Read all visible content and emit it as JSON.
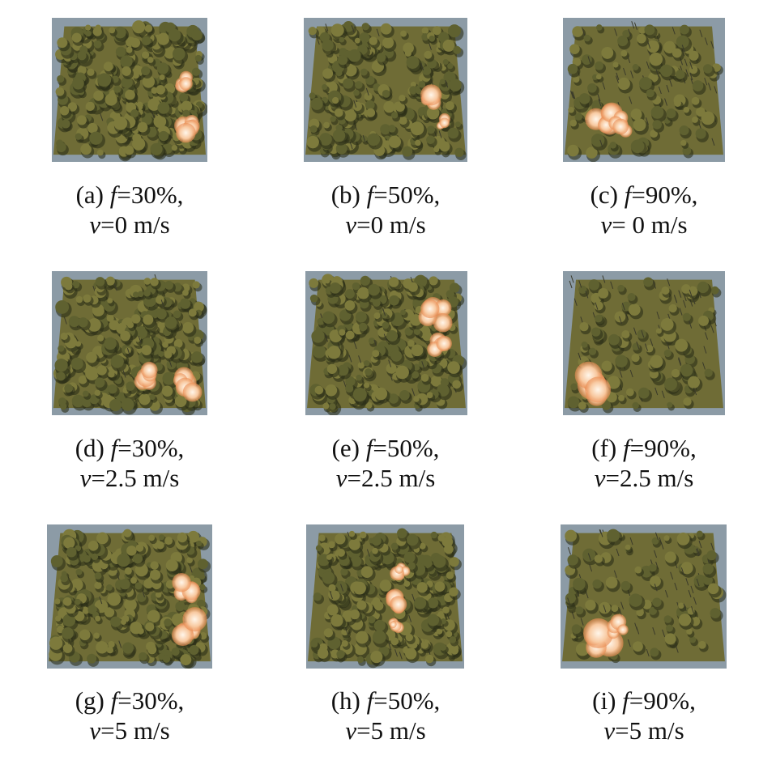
{
  "panels": [
    {
      "label": "(a)",
      "f_var": "f",
      "f_text": "=30%,",
      "v_var": "v",
      "v_text": "=0 m/s"
    },
    {
      "label": "(b)",
      "f_var": "f",
      "f_text": "=50%,",
      "v_var": "v",
      "v_text": "=0 m/s"
    },
    {
      "label": "(c)",
      "f_var": "f",
      "f_text": "=90%,",
      "v_var": "v",
      "v_text": "= 0 m/s"
    },
    {
      "label": "(d)",
      "f_var": "f",
      "f_text": "=30%,",
      "v_var": "v",
      "v_text": "=2.5 m/s"
    },
    {
      "label": "(e)",
      "f_var": "f",
      "f_text": "=50%,",
      "v_var": "v",
      "v_text": "=2.5 m/s"
    },
    {
      "label": "(f)",
      "f_var": "f",
      "f_text": "=90%,",
      "v_var": "v",
      "v_text": "=2.5 m/s"
    },
    {
      "label": "(g)",
      "f_var": "f",
      "f_text": "=30%,",
      "v_var": "v",
      "v_text": "=5 m/s"
    },
    {
      "label": "(h)",
      "f_var": "f",
      "f_text": "=50%,",
      "v_var": "v",
      "v_text": "=5 m/s"
    },
    {
      "label": "(i)",
      "f_var": "f",
      "f_text": "=90%,",
      "v_var": "v",
      "v_text": "=5 m/s"
    }
  ]
}
